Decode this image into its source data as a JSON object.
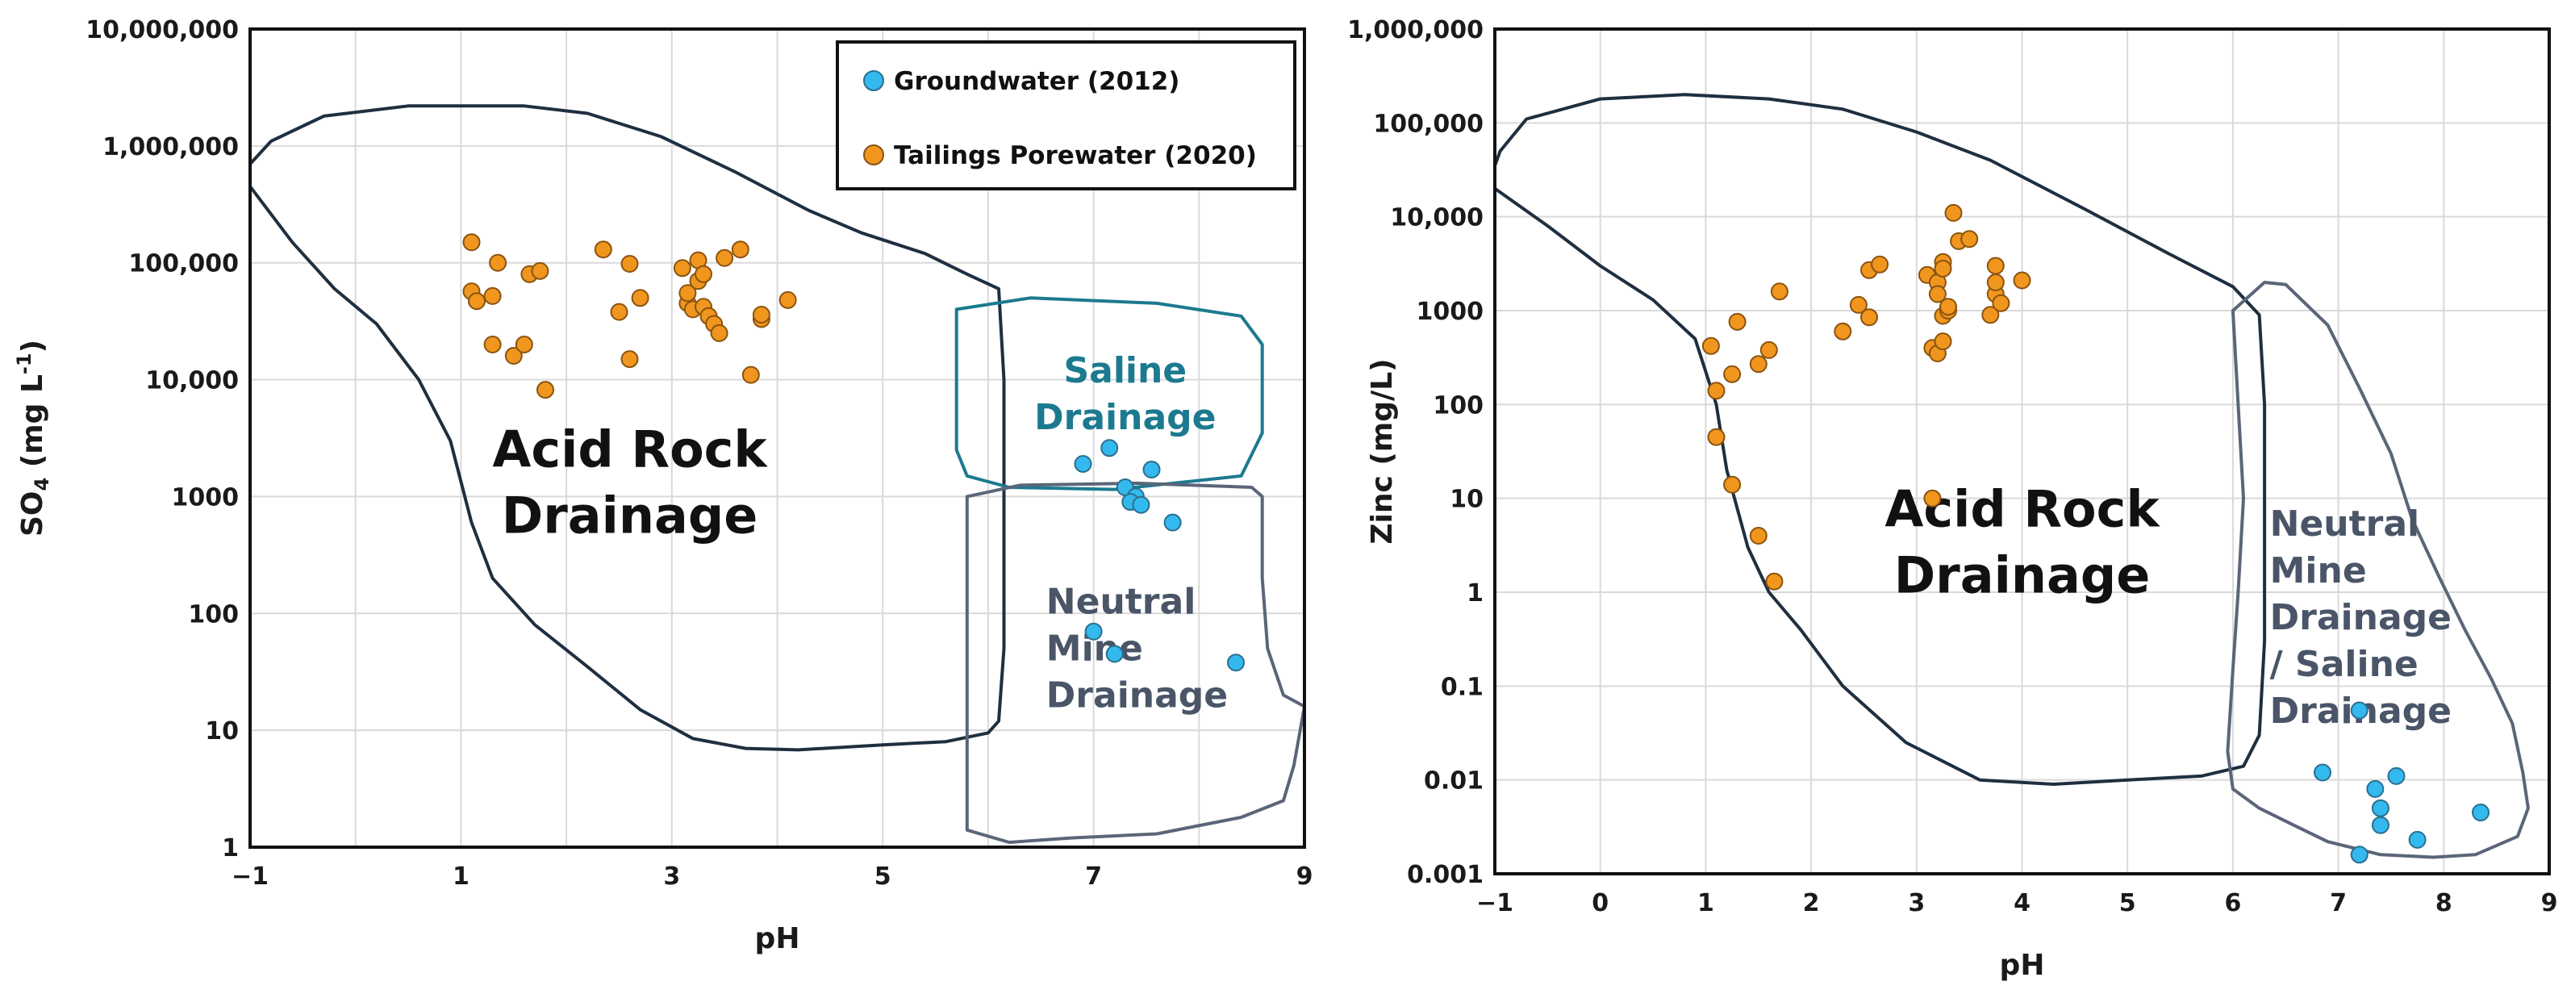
{
  "colors": {
    "groundwater": "#33B9EE",
    "tailings": "#F0961E",
    "ard_outline": "#1F2F3F",
    "saline_outline": "#1C7A90",
    "neutral_outline": "#5A6678",
    "saline_text": "#1C7A90",
    "neutral_text": "#4A5568",
    "grid": "#D9D9D9"
  },
  "legend": {
    "items": [
      {
        "label": "Groundwater (2012)",
        "series": "groundwater"
      },
      {
        "label": "Tailings Porewater (2020)",
        "series": "tailings"
      }
    ]
  },
  "chart_data": [
    {
      "type": "scatter",
      "yscale": "log",
      "xlabel": "pH",
      "ylabel_main": "SO",
      "ylabel_sub": "4",
      "ylabel_rest": " (mg L",
      "ylabel_sup": "-1",
      "ylabel_close": ")",
      "xlim": [
        -1,
        9
      ],
      "ylim": [
        1,
        10000000
      ],
      "xticks": [
        -1,
        1,
        3,
        5,
        7,
        9
      ],
      "xtick_labels": [
        "−1",
        "1",
        "3",
        "5",
        "7",
        "9"
      ],
      "yticks": [
        1,
        10,
        100,
        1000,
        10000,
        100000,
        1000000,
        10000000
      ],
      "ytick_labels": [
        "1",
        "10",
        "100",
        "1000",
        "10,000",
        "100,000",
        "1,000,000",
        "10,000,000"
      ],
      "legend_position": "top-right",
      "region_labels": [
        {
          "key": "ard",
          "lines": [
            "Acid Rock",
            "Drainage"
          ],
          "x": 2.6,
          "y": 1800
        },
        {
          "key": "saline",
          "lines": [
            "Saline",
            "Drainage"
          ],
          "x": 7.3,
          "y": 9500
        },
        {
          "key": "neutral",
          "lines": [
            "Neutral",
            "Mine",
            "Drainage"
          ],
          "x": 6.55,
          "y": 100
        }
      ],
      "regions": {
        "ard": [
          [
            -1,
            450000
          ],
          [
            -0.6,
            150000
          ],
          [
            -0.2,
            60000
          ],
          [
            0.2,
            30000
          ],
          [
            0.6,
            10000
          ],
          [
            0.9,
            3000
          ],
          [
            1.1,
            600
          ],
          [
            1.3,
            200
          ],
          [
            1.7,
            80
          ],
          [
            2.2,
            35
          ],
          [
            2.7,
            15
          ],
          [
            3.2,
            8.5
          ],
          [
            3.7,
            7
          ],
          [
            4.2,
            6.8
          ],
          [
            5.0,
            7.5
          ],
          [
            5.6,
            8
          ],
          [
            6.0,
            9.5
          ],
          [
            6.1,
            12
          ],
          [
            6.15,
            50
          ],
          [
            6.15,
            10000
          ],
          [
            6.1,
            60000
          ],
          [
            5.8,
            80000
          ],
          [
            5.4,
            120000
          ],
          [
            4.8,
            180000
          ],
          [
            4.3,
            280000
          ],
          [
            3.6,
            600000
          ],
          [
            2.9,
            1200000
          ],
          [
            2.2,
            1900000
          ],
          [
            1.6,
            2200000
          ],
          [
            0.5,
            2200000
          ],
          [
            -0.3,
            1800000
          ],
          [
            -0.8,
            1100000
          ],
          [
            -1,
            700000
          ],
          [
            -1,
            450000
          ]
        ],
        "saline": [
          [
            5.7,
            40000
          ],
          [
            6.4,
            50000
          ],
          [
            7.6,
            45000
          ],
          [
            8.4,
            35000
          ],
          [
            8.6,
            20000
          ],
          [
            8.6,
            3500
          ],
          [
            8.4,
            1500
          ],
          [
            7.2,
            1150
          ],
          [
            6.2,
            1200
          ],
          [
            5.8,
            1500
          ],
          [
            5.7,
            2500
          ],
          [
            5.7,
            10000
          ],
          [
            5.7,
            40000
          ]
        ],
        "neutral": [
          [
            5.8,
            1000
          ],
          [
            6.3,
            1250
          ],
          [
            7.4,
            1300
          ],
          [
            8.5,
            1200
          ],
          [
            8.6,
            1000
          ],
          [
            8.6,
            200
          ],
          [
            8.65,
            50
          ],
          [
            8.8,
            20
          ],
          [
            9.0,
            16
          ],
          [
            8.9,
            5
          ],
          [
            8.8,
            2.5
          ],
          [
            8.4,
            1.8
          ],
          [
            7.6,
            1.3
          ],
          [
            6.8,
            1.2
          ],
          [
            6.2,
            1.1
          ],
          [
            5.8,
            1.4
          ],
          [
            5.8,
            30
          ],
          [
            5.8,
            1000
          ]
        ]
      },
      "series": [
        {
          "name": "Groundwater (2012)",
          "key": "groundwater",
          "points": [
            [
              6.9,
              1900
            ],
            [
              7.15,
              2600
            ],
            [
              7.55,
              1700
            ],
            [
              7.3,
              1200
            ],
            [
              7.4,
              1000
            ],
            [
              7.35,
              900
            ],
            [
              7.45,
              850
            ],
            [
              7.75,
              600
            ],
            [
              7.0,
              70
            ],
            [
              7.2,
              45
            ],
            [
              8.35,
              38
            ]
          ]
        },
        {
          "name": "Tailings Porewater (2020)",
          "key": "tailings",
          "points": [
            [
              1.1,
              150000
            ],
            [
              1.1,
              57000
            ],
            [
              1.15,
              47000
            ],
            [
              1.3,
              52000
            ],
            [
              1.35,
              100000
            ],
            [
              1.3,
              20000
            ],
            [
              1.5,
              16000
            ],
            [
              1.6,
              20000
            ],
            [
              1.65,
              80000
            ],
            [
              1.75,
              85000
            ],
            [
              1.8,
              8200
            ],
            [
              2.35,
              130000
            ],
            [
              2.5,
              38000
            ],
            [
              2.6,
              98000
            ],
            [
              2.6,
              15000
            ],
            [
              2.7,
              50000
            ],
            [
              3.1,
              90000
            ],
            [
              3.15,
              45000
            ],
            [
              3.15,
              55000
            ],
            [
              3.2,
              40000
            ],
            [
              3.25,
              70000
            ],
            [
              3.25,
              105000
            ],
            [
              3.3,
              42000
            ],
            [
              3.3,
              80000
            ],
            [
              3.35,
              35000
            ],
            [
              3.4,
              30000
            ],
            [
              3.45,
              25000
            ],
            [
              3.5,
              110000
            ],
            [
              3.65,
              130000
            ],
            [
              3.75,
              11000
            ],
            [
              3.85,
              33000
            ],
            [
              3.85,
              36000
            ],
            [
              4.1,
              48000
            ]
          ]
        }
      ]
    },
    {
      "type": "scatter",
      "yscale": "log",
      "xlabel": "pH",
      "ylabel": "Zinc (mg/L)",
      "xlim": [
        -1,
        9
      ],
      "ylim": [
        0.001,
        1000000
      ],
      "xticks": [
        -1,
        0,
        1,
        2,
        3,
        4,
        5,
        6,
        7,
        8,
        9
      ],
      "xtick_labels": [
        "−1",
        "0",
        "1",
        "2",
        "3",
        "4",
        "5",
        "6",
        "7",
        "8",
        "9"
      ],
      "yticks": [
        0.001,
        0.01,
        0.1,
        1,
        10,
        100,
        1000,
        10000,
        100000,
        1000000
      ],
      "ytick_labels": [
        "0.001",
        "0.01",
        "0.1",
        "1",
        "10",
        "100",
        "1000",
        "10,000",
        "100,000",
        "1,000,000"
      ],
      "region_labels": [
        {
          "key": "ard",
          "lines": [
            "Acid Rock",
            "Drainage"
          ],
          "x": 4.0,
          "y": 5
        },
        {
          "key": "neutral",
          "lines": [
            "Neutral",
            "Mine",
            "Drainage",
            "/ Saline",
            "Drainage"
          ],
          "x": 6.35,
          "y": 4
        }
      ],
      "regions": {
        "ard": [
          [
            -1,
            20000
          ],
          [
            -0.5,
            8000
          ],
          [
            0,
            3000
          ],
          [
            0.5,
            1300
          ],
          [
            0.9,
            500
          ],
          [
            1.1,
            100
          ],
          [
            1.2,
            20
          ],
          [
            1.4,
            3
          ],
          [
            1.6,
            1
          ],
          [
            1.9,
            0.4
          ],
          [
            2.3,
            0.1
          ],
          [
            2.9,
            0.025
          ],
          [
            3.6,
            0.01
          ],
          [
            4.3,
            0.009
          ],
          [
            5.0,
            0.01
          ],
          [
            5.7,
            0.011
          ],
          [
            6.1,
            0.014
          ],
          [
            6.25,
            0.03
          ],
          [
            6.3,
            0.3
          ],
          [
            6.3,
            100
          ],
          [
            6.25,
            900
          ],
          [
            6.0,
            1800
          ],
          [
            5.4,
            4000
          ],
          [
            4.6,
            12000
          ],
          [
            3.7,
            40000
          ],
          [
            3.0,
            80000
          ],
          [
            2.3,
            140000
          ],
          [
            1.6,
            180000
          ],
          [
            0.8,
            200000
          ],
          [
            0,
            180000
          ],
          [
            -0.7,
            110000
          ],
          [
            -0.95,
            50000
          ],
          [
            -1,
            35000
          ],
          [
            -1,
            20000
          ]
        ],
        "neutral": [
          [
            6.0,
            1000
          ],
          [
            6.3,
            2000
          ],
          [
            6.5,
            1900
          ],
          [
            6.9,
            700
          ],
          [
            7.2,
            150
          ],
          [
            7.5,
            30
          ],
          [
            7.7,
            6
          ],
          [
            7.95,
            1.5
          ],
          [
            8.2,
            0.4
          ],
          [
            8.45,
            0.12
          ],
          [
            8.65,
            0.04
          ],
          [
            8.75,
            0.012
          ],
          [
            8.8,
            0.005
          ],
          [
            8.7,
            0.0025
          ],
          [
            8.3,
            0.0016
          ],
          [
            7.9,
            0.0015
          ],
          [
            7.4,
            0.0016
          ],
          [
            6.9,
            0.0022
          ],
          [
            6.6,
            0.0032
          ],
          [
            6.25,
            0.005
          ],
          [
            6.0,
            0.008
          ],
          [
            5.95,
            0.02
          ],
          [
            6.0,
            0.15
          ],
          [
            6.05,
            1
          ],
          [
            6.1,
            10
          ],
          [
            6.05,
            100
          ],
          [
            6.0,
            1000
          ]
        ]
      },
      "series": [
        {
          "name": "Groundwater (2012)",
          "key": "groundwater",
          "points": [
            [
              6.85,
              0.012
            ],
            [
              7.2,
              0.055
            ],
            [
              7.35,
              0.008
            ],
            [
              7.4,
              0.005
            ],
            [
              7.4,
              0.0033
            ],
            [
              7.55,
              0.011
            ],
            [
              7.2,
              0.0016
            ],
            [
              7.75,
              0.0023
            ],
            [
              8.35,
              0.0045
            ]
          ]
        },
        {
          "name": "Tailings Porewater (2020)",
          "key": "tailings",
          "points": [
            [
              1.05,
              420
            ],
            [
              1.1,
              140
            ],
            [
              1.1,
              45
            ],
            [
              1.25,
              210
            ],
            [
              1.3,
              760
            ],
            [
              1.25,
              14
            ],
            [
              1.5,
              270
            ],
            [
              1.5,
              4
            ],
            [
              1.6,
              380
            ],
            [
              1.65,
              1.3
            ],
            [
              1.7,
              1600
            ],
            [
              2.3,
              600
            ],
            [
              2.45,
              1150
            ],
            [
              2.55,
              2700
            ],
            [
              2.55,
              850
            ],
            [
              2.65,
              3100
            ],
            [
              3.1,
              2400
            ],
            [
              3.15,
              400
            ],
            [
              3.15,
              10
            ],
            [
              3.2,
              2000
            ],
            [
              3.2,
              1500
            ],
            [
              3.25,
              3300
            ],
            [
              3.25,
              2800
            ],
            [
              3.25,
              880
            ],
            [
              3.2,
              350
            ],
            [
              3.25,
              470
            ],
            [
              3.3,
              1000
            ],
            [
              3.3,
              1100
            ],
            [
              3.35,
              11000
            ],
            [
              3.4,
              5500
            ],
            [
              3.5,
              5800
            ],
            [
              3.7,
              900
            ],
            [
              3.75,
              1500
            ],
            [
              3.75,
              3000
            ],
            [
              3.75,
              2000
            ],
            [
              3.8,
              1200
            ],
            [
              4.0,
              2100
            ]
          ]
        }
      ]
    }
  ]
}
